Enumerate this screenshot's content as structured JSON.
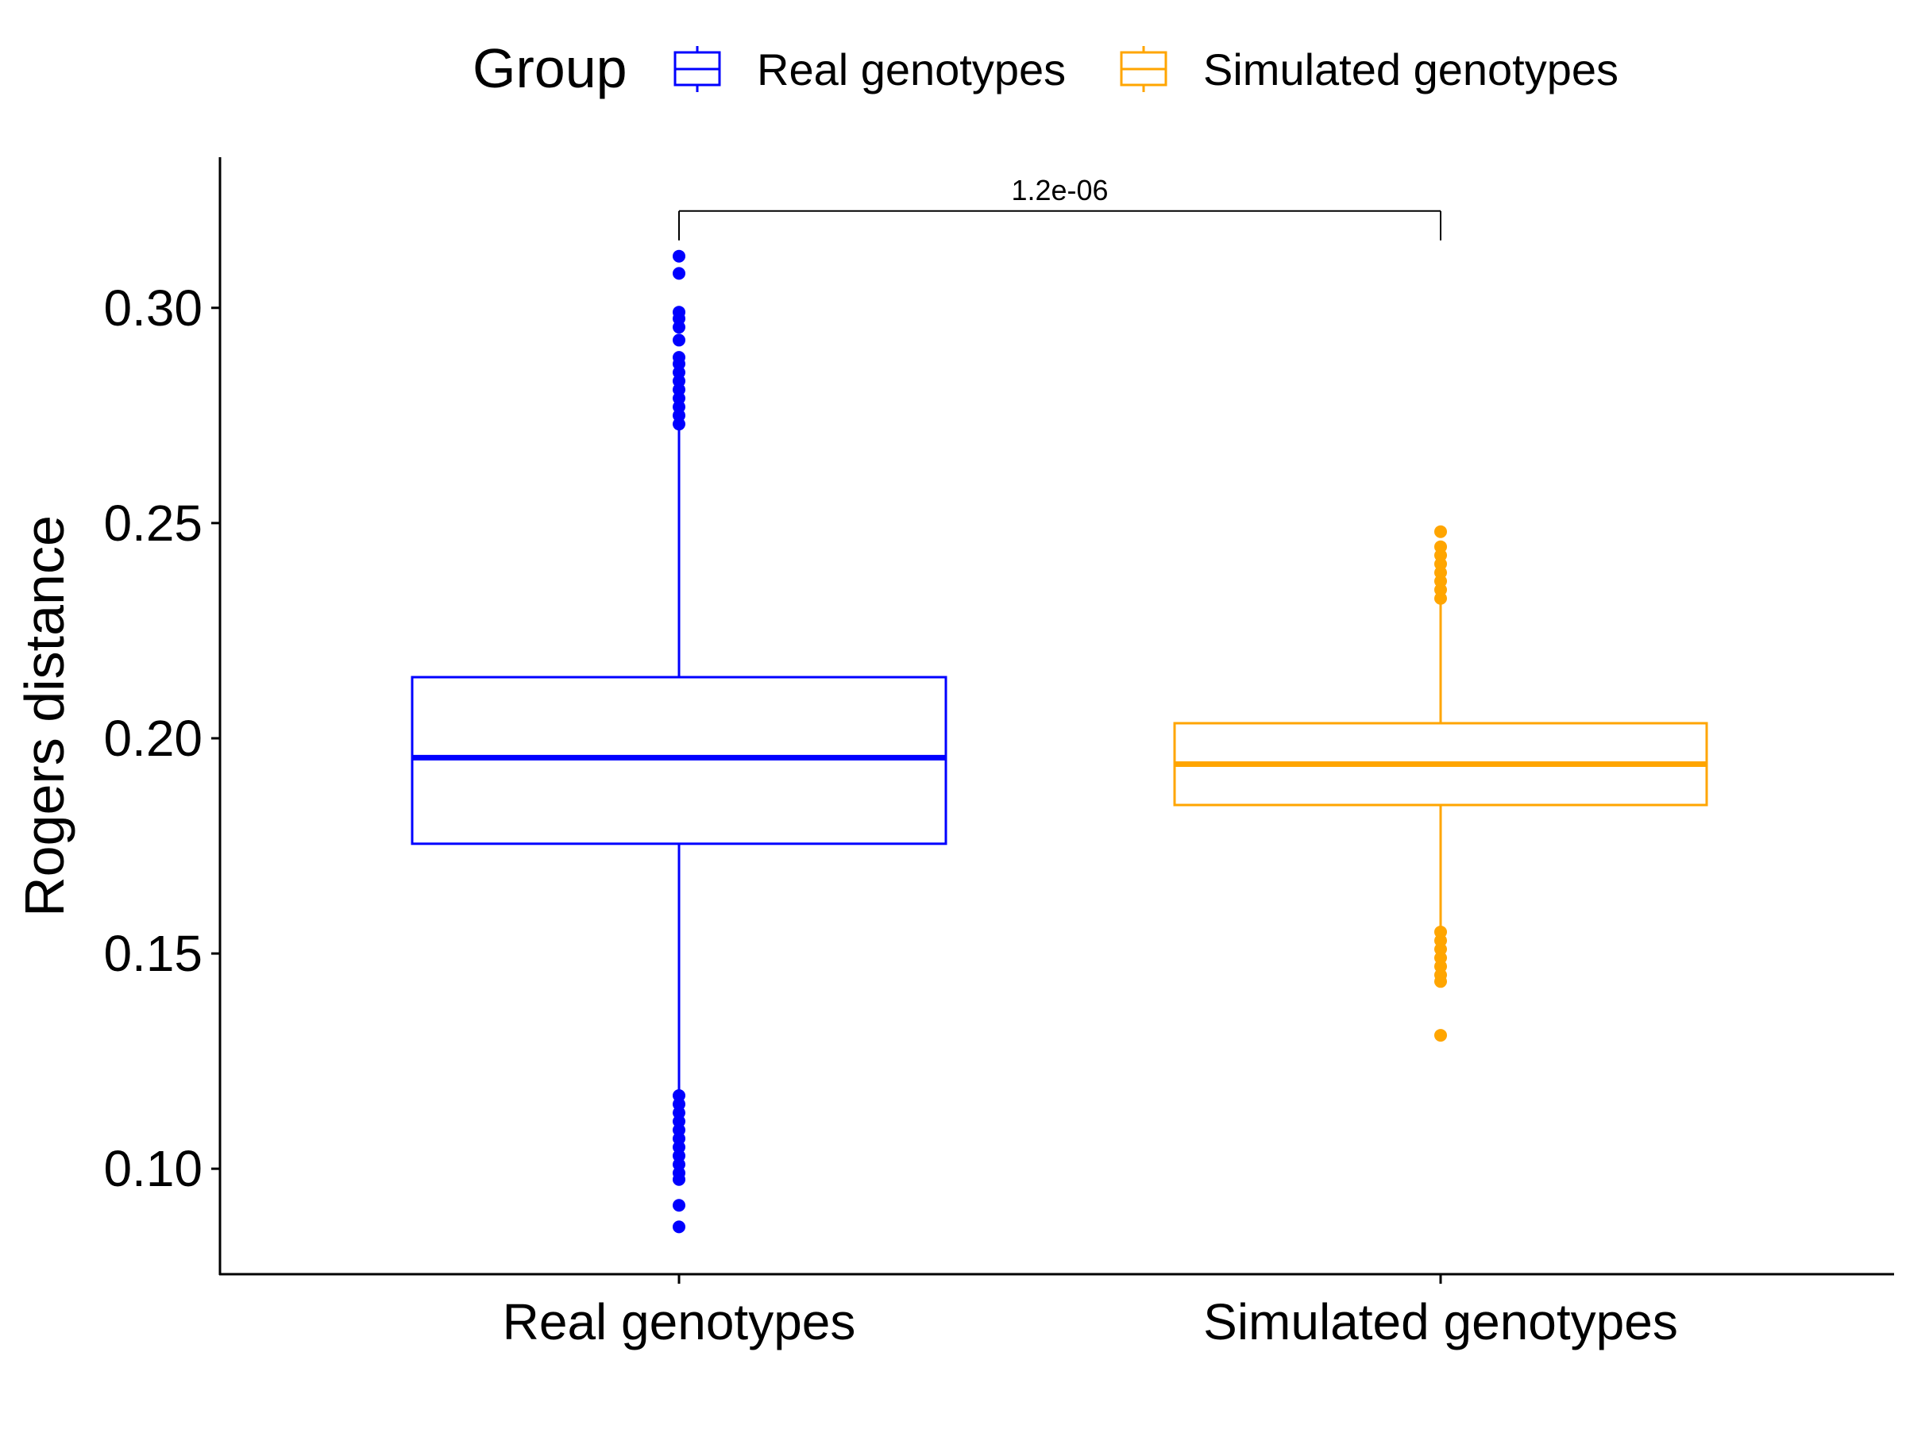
{
  "chart_data": {
    "type": "box",
    "ylabel": "Rogers distance",
    "ylim": [
      0.0755,
      0.335
    ],
    "y_ticks": [
      0.1,
      0.15,
      0.2,
      0.25,
      0.3
    ],
    "y_tick_labels": [
      "0.10",
      "0.15",
      "0.20",
      "0.25",
      "0.30"
    ],
    "categories": [
      "Real genotypes",
      "Simulated genotypes"
    ],
    "legend": {
      "title": "Group",
      "placement": "top",
      "entries": [
        "Real genotypes",
        "Simulated genotypes"
      ]
    },
    "series": [
      {
        "name": "Real genotypes",
        "color": "#0000FF",
        "q1": 0.1755,
        "median": 0.1955,
        "q3": 0.2142,
        "whisker_low": 0.1175,
        "whisker_high": 0.2722,
        "outliers": [
          0.0865,
          0.0915,
          0.0975,
          0.099,
          0.101,
          0.103,
          0.105,
          0.107,
          0.109,
          0.111,
          0.113,
          0.115,
          0.117,
          0.273,
          0.275,
          0.277,
          0.279,
          0.281,
          0.283,
          0.285,
          0.287,
          0.2885,
          0.2925,
          0.2955,
          0.2975,
          0.299,
          0.308,
          0.312
        ]
      },
      {
        "name": "Simulated genotypes",
        "color": "#FFA500",
        "q1": 0.1845,
        "median": 0.194,
        "q3": 0.2035,
        "whisker_low": 0.1558,
        "whisker_high": 0.2322,
        "outliers": [
          0.131,
          0.1435,
          0.145,
          0.147,
          0.149,
          0.151,
          0.153,
          0.155,
          0.2325,
          0.2345,
          0.2365,
          0.2385,
          0.2405,
          0.2425,
          0.2445,
          0.248
        ]
      }
    ],
    "annotations": [
      {
        "text": "1.2e-06",
        "between": [
          "Real genotypes",
          "Simulated genotypes"
        ],
        "y": 0.3225
      }
    ]
  }
}
